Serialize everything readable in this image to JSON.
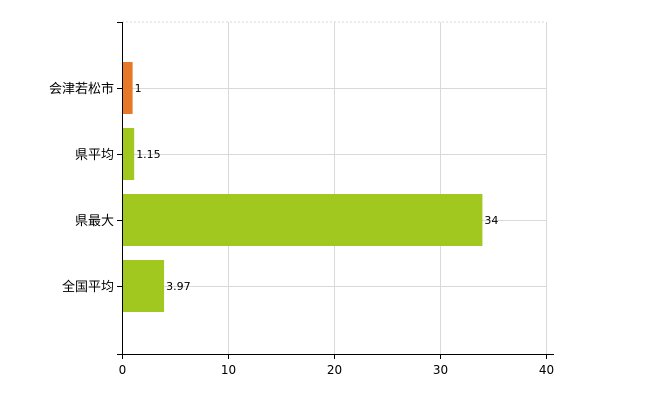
{
  "chart_data": {
    "type": "bar",
    "orientation": "horizontal",
    "categories": [
      "会津若松市",
      "県平均",
      "県最大",
      "全国平均"
    ],
    "values": [
      1,
      1.15,
      34,
      3.97
    ],
    "data_labels": [
      "1",
      "1.15",
      "34",
      "3.97"
    ],
    "colors": [
      "#e6782a",
      "#a0c81e",
      "#a0c81e",
      "#a0c81e"
    ],
    "xlim": [
      0,
      40
    ],
    "x_ticks": [
      0,
      10,
      20,
      30,
      40
    ],
    "x_tick_labels": [
      "0",
      "10",
      "20",
      "30",
      "40"
    ],
    "grid": true,
    "legend": "none"
  }
}
